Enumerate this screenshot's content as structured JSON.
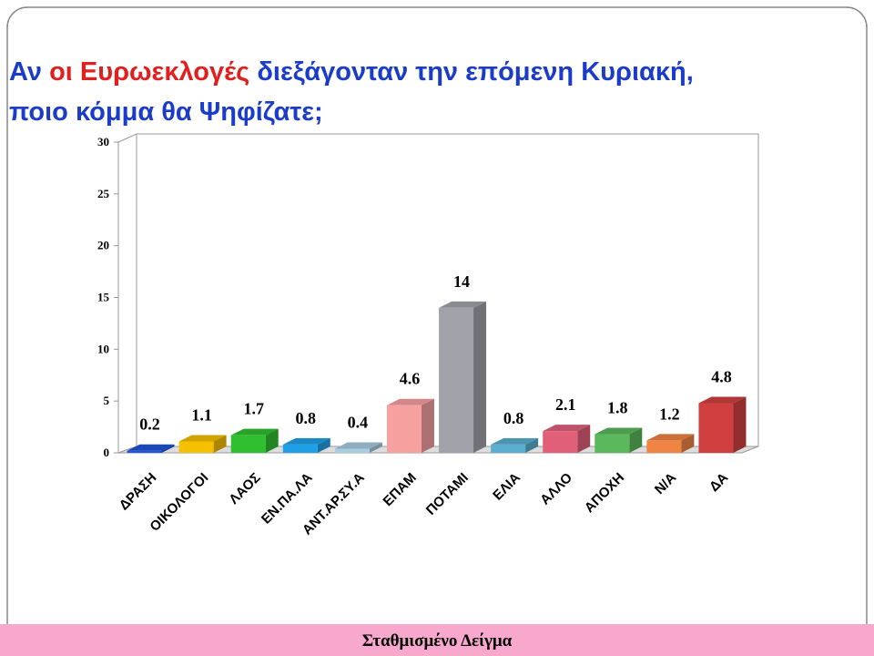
{
  "chart_data": {
    "type": "bar3d",
    "title_parts": [
      "Αν",
      "οι Ευρωεκλογές",
      "διεξάγονταν την επόμενη Κυριακή,",
      "ποιο κόμμα θα Ψηφίζατε;"
    ],
    "title_colors": [
      "#1a3cc8",
      "#e0201e",
      "#1a3cc8",
      "#1a3cc8"
    ],
    "categories": [
      "ΔΡΑΣΗ",
      "ΟΙΚΟΛΟΓΟΙ",
      "ΛΑΟΣ",
      "ΕΝ.ΠΑ.ΛΑ",
      "ΑΝΤ.ΑΡ.ΣΥ.Α",
      "ΕΠΑΜ",
      "ΠΟΤΑΜΙ",
      "ΕΛΙΑ",
      "ΑΛΛΟ",
      "ΑΠΟΧΗ",
      "Ν/Α",
      "ΔΑ"
    ],
    "values": [
      0.2,
      1.1,
      1.7,
      0.8,
      0.4,
      4.6,
      14,
      0.8,
      2.1,
      1.8,
      1.2,
      4.8
    ],
    "colors": [
      "#1f55d6",
      "#f5c000",
      "#2fbf2f",
      "#1fa0e6",
      "#a8cce0",
      "#f7a0a0",
      "#a2a2aa",
      "#5aaed0",
      "#e0607a",
      "#5cb85c",
      "#f08444",
      "#d04040"
    ],
    "ylim": [
      0,
      30
    ],
    "yticks": [
      0,
      5,
      10,
      15,
      20,
      25,
      30
    ],
    "grid": false
  },
  "footer": "Σταθμισμένο Δείγμα"
}
